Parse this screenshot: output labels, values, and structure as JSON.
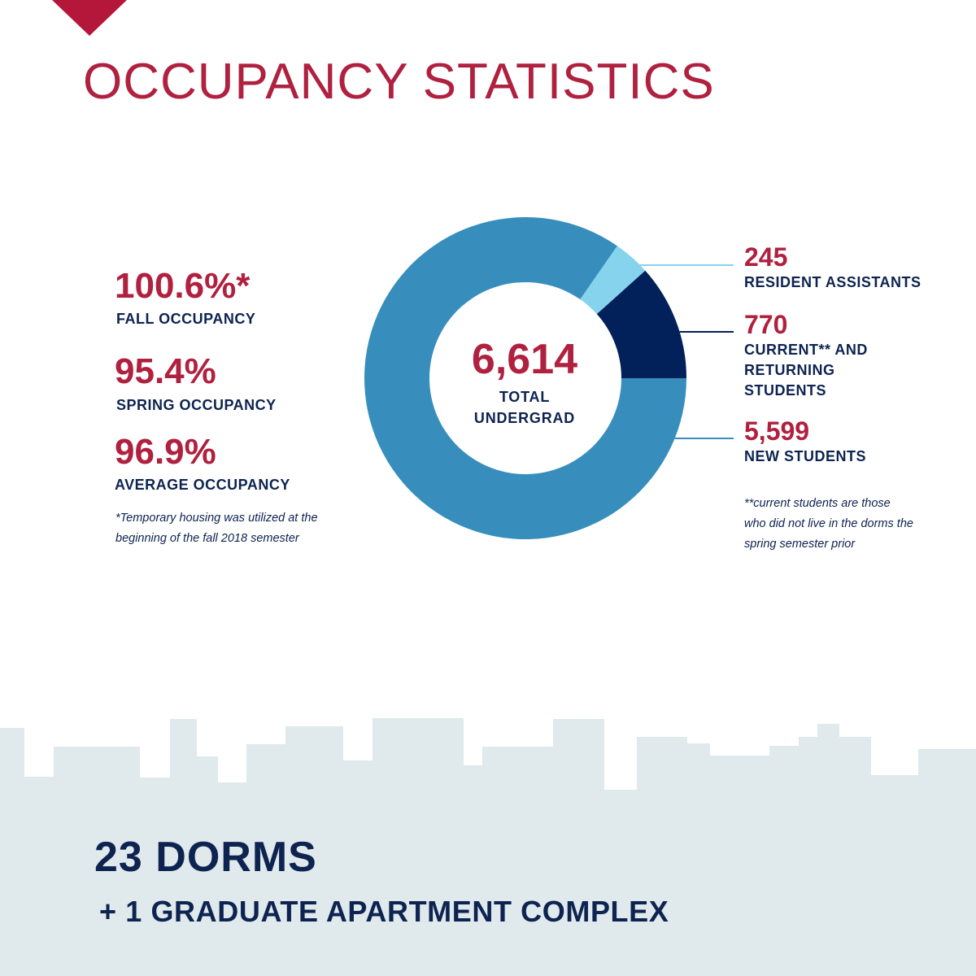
{
  "page": {
    "title": "OCCUPANCY STATISTICS",
    "colors": {
      "accent": "#b0203f",
      "navy": "#0d2350",
      "skyline": "#e0e9ec"
    }
  },
  "stats": [
    {
      "value": "100.6%*",
      "label": "FALL OCCUPANCY"
    },
    {
      "value": "95.4%",
      "label": "SPRING OCCUPANCY"
    },
    {
      "value": "96.9%",
      "label": "AVERAGE OCCUPANCY"
    }
  ],
  "footnote_left": [
    "*Temporary housing was utilized at the",
    "beginning of the fall 2018 semester"
  ],
  "footnote_right": [
    "**current students are those",
    "who did not live in the dorms the",
    "spring semester prior"
  ],
  "chart_data": {
    "type": "pie",
    "subtype": "donut",
    "center_value": "6,614",
    "center_label": [
      "TOTAL",
      "UNDERGRAD"
    ],
    "slices": [
      {
        "value": 245,
        "display": "245",
        "label": [
          "RESIDENT ASSISTANTS"
        ],
        "color": "#85d3ec"
      },
      {
        "value": 770,
        "display": "770",
        "label": [
          "CURRENT** AND",
          "RETURNING",
          "STUDENTS"
        ],
        "color": "#02205a"
      },
      {
        "value": 5599,
        "display": "5,599",
        "label": [
          "NEW STUDENTS"
        ],
        "color": "#378ebd"
      }
    ]
  },
  "footer": {
    "title": "23 DORMS",
    "subtitle": "+ 1 GRADUATE APARTMENT COMPLEX"
  }
}
